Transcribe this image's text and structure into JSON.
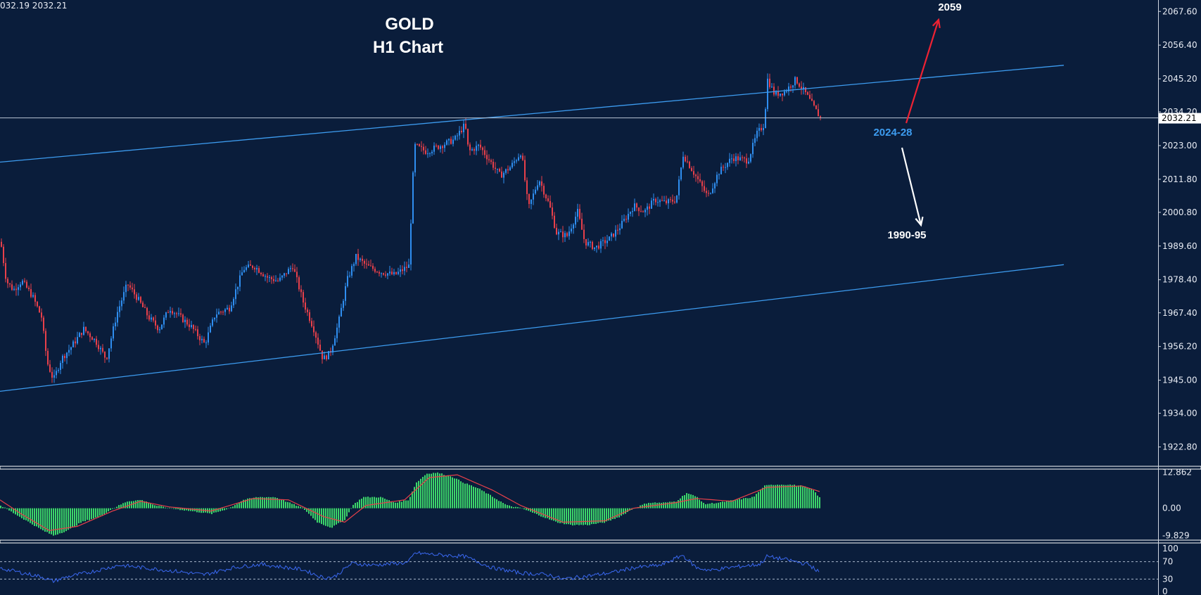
{
  "header": {
    "ohlc_readout": "032.19 2032.21"
  },
  "chart_data": [
    {
      "type": "candlestick",
      "title": "GOLD",
      "subtitle": "H1 Chart",
      "symbol": "GOLD",
      "timeframe": "H1",
      "ylim": [
        1916.6,
        2071.4
      ],
      "y_ticks": [
        "2067.60",
        "2056.40",
        "2045.20",
        "2034.20",
        "2023.00",
        "2011.80",
        "2000.80",
        "1989.60",
        "1978.40",
        "1967.40",
        "1956.20",
        "1945.00",
        "1934.00",
        "1922.80"
      ],
      "current_price": "2032.21",
      "close_path": [
        [
          0,
          1991
        ],
        [
          8,
          1978
        ],
        [
          18,
          1975
        ],
        [
          30,
          1978
        ],
        [
          45,
          1973
        ],
        [
          58,
          1966
        ],
        [
          66,
          1951
        ],
        [
          75,
          1945
        ],
        [
          86,
          1952
        ],
        [
          100,
          1956
        ],
        [
          118,
          1962
        ],
        [
          135,
          1958
        ],
        [
          150,
          1952
        ],
        [
          165,
          1967
        ],
        [
          180,
          1977
        ],
        [
          195,
          1972
        ],
        [
          210,
          1966
        ],
        [
          225,
          1962
        ],
        [
          240,
          1969
        ],
        [
          255,
          1966
        ],
        [
          270,
          1963
        ],
        [
          290,
          1957
        ],
        [
          305,
          1967
        ],
        [
          325,
          1969
        ],
        [
          345,
          1982
        ],
        [
          360,
          1983
        ],
        [
          380,
          1979
        ],
        [
          395,
          1978
        ],
        [
          415,
          1983
        ],
        [
          430,
          1971
        ],
        [
          445,
          1962
        ],
        [
          458,
          1952
        ],
        [
          468,
          1954
        ],
        [
          480,
          1964
        ],
        [
          492,
          1978
        ],
        [
          505,
          1986
        ],
        [
          520,
          1983
        ],
        [
          540,
          1981
        ],
        [
          560,
          1980
        ],
        [
          580,
          1983
        ],
        [
          588,
          2023
        ],
        [
          605,
          2021
        ],
        [
          625,
          2023
        ],
        [
          645,
          2025
        ],
        [
          660,
          2030
        ],
        [
          665,
          2021
        ],
        [
          680,
          2023
        ],
        [
          695,
          2018
        ],
        [
          710,
          2013
        ],
        [
          725,
          2016
        ],
        [
          740,
          2021
        ],
        [
          750,
          2002
        ],
        [
          765,
          2012
        ],
        [
          780,
          2003
        ],
        [
          790,
          1994
        ],
        [
          805,
          1993
        ],
        [
          820,
          2001
        ],
        [
          830,
          1991
        ],
        [
          845,
          1989
        ],
        [
          865,
          1992
        ],
        [
          880,
          1996
        ],
        [
          900,
          2003
        ],
        [
          915,
          2001
        ],
        [
          930,
          2005
        ],
        [
          945,
          2004
        ],
        [
          960,
          2005
        ],
        [
          970,
          2020
        ],
        [
          985,
          2014
        ],
        [
          1005,
          2006
        ],
        [
          1020,
          2014
        ],
        [
          1040,
          2019
        ],
        [
          1062,
          2018
        ],
        [
          1075,
          2027
        ],
        [
          1085,
          2030
        ],
        [
          1090,
          2045
        ],
        [
          1100,
          2040
        ],
        [
          1115,
          2041
        ],
        [
          1130,
          2045
        ],
        [
          1145,
          2040
        ],
        [
          1155,
          2036
        ],
        [
          1165,
          2032.2
        ]
      ],
      "trendlines": [
        {
          "name": "upper-channel",
          "from": [
            0,
            2017.5
          ],
          "to": [
            1512,
            2049.7
          ]
        },
        {
          "name": "lower-channel",
          "from": [
            0,
            1941.3
          ],
          "to": [
            1512,
            1983.4
          ]
        }
      ],
      "annotations": [
        {
          "text": "2059",
          "price": 2059,
          "color": "#ffffff",
          "arrow_color": "#ee2233",
          "direction": "up"
        },
        {
          "text": "2024-28",
          "price": 2026,
          "color": "#3d9cf0"
        },
        {
          "text": "1990-95",
          "price": 1992.5,
          "color": "#ffffff",
          "arrow_color": "#ffffff",
          "direction": "down"
        }
      ],
      "colors": {
        "background": "#0a1d3b",
        "bull": "#2f8ef0",
        "bear": "#e8404a",
        "channel": "#3d9cf0",
        "axis_text": "#e8ecf4"
      }
    },
    {
      "type": "histogram",
      "name": "macd",
      "ylim": [
        -11.2,
        13.8
      ],
      "y_ticks": [
        "12.862",
        "0.00",
        "-9.829"
      ],
      "histogram_path": [
        [
          0,
          1
        ],
        [
          20,
          -2
        ],
        [
          40,
          -5
        ],
        [
          60,
          -8
        ],
        [
          75,
          -9.8
        ],
        [
          95,
          -8
        ],
        [
          115,
          -5
        ],
        [
          140,
          -3
        ],
        [
          160,
          0
        ],
        [
          180,
          2.5
        ],
        [
          200,
          3
        ],
        [
          220,
          1
        ],
        [
          240,
          0
        ],
        [
          270,
          -1
        ],
        [
          300,
          -2
        ],
        [
          325,
          0
        ],
        [
          345,
          3
        ],
        [
          365,
          4
        ],
        [
          390,
          4
        ],
        [
          410,
          2
        ],
        [
          430,
          0
        ],
        [
          450,
          -5
        ],
        [
          470,
          -7
        ],
        [
          490,
          -4
        ],
        [
          500,
          1
        ],
        [
          515,
          4
        ],
        [
          540,
          4
        ],
        [
          560,
          2
        ],
        [
          580,
          3
        ],
        [
          590,
          9
        ],
        [
          605,
          12.4
        ],
        [
          620,
          12.8
        ],
        [
          640,
          11.5
        ],
        [
          660,
          9
        ],
        [
          680,
          7
        ],
        [
          700,
          4
        ],
        [
          720,
          1
        ],
        [
          740,
          0
        ],
        [
          760,
          -2
        ],
        [
          790,
          -5
        ],
        [
          810,
          -6
        ],
        [
          835,
          -6
        ],
        [
          860,
          -5
        ],
        [
          880,
          -3
        ],
        [
          900,
          0
        ],
        [
          920,
          2
        ],
        [
          945,
          2
        ],
        [
          960,
          2.5
        ],
        [
          975,
          5.5
        ],
        [
          990,
          4
        ],
        [
          1000,
          1.5
        ],
        [
          1020,
          2
        ],
        [
          1045,
          3
        ],
        [
          1070,
          4
        ],
        [
          1085,
          8
        ],
        [
          1100,
          8.5
        ],
        [
          1120,
          8.5
        ],
        [
          1140,
          8
        ],
        [
          1155,
          6.5
        ],
        [
          1165,
          3.5
        ]
      ],
      "signal_path": [
        [
          0,
          3
        ],
        [
          30,
          -2
        ],
        [
          70,
          -8
        ],
        [
          110,
          -6.5
        ],
        [
          160,
          -1
        ],
        [
          200,
          2.5
        ],
        [
          240,
          0.5
        ],
        [
          300,
          -1
        ],
        [
          360,
          3.5
        ],
        [
          410,
          3
        ],
        [
          460,
          -3
        ],
        [
          490,
          -5
        ],
        [
          520,
          1
        ],
        [
          575,
          3
        ],
        [
          610,
          11
        ],
        [
          650,
          12
        ],
        [
          700,
          6.5
        ],
        [
          740,
          1
        ],
        [
          800,
          -5
        ],
        [
          860,
          -4.5
        ],
        [
          900,
          0
        ],
        [
          960,
          2
        ],
        [
          990,
          3.5
        ],
        [
          1040,
          2.5
        ],
        [
          1090,
          7.5
        ],
        [
          1140,
          8
        ],
        [
          1165,
          6
        ]
      ],
      "colors": {
        "histogram": "#3cd66a",
        "signal": "#e8404a"
      }
    },
    {
      "type": "line",
      "name": "rsi",
      "ylim": [
        0,
        100
      ],
      "y_ticks": [
        "100",
        "70",
        "30",
        "0"
      ],
      "levels": [
        70,
        30
      ],
      "rsi_path": [
        [
          0,
          55
        ],
        [
          30,
          45
        ],
        [
          60,
          35
        ],
        [
          75,
          25
        ],
        [
          95,
          35
        ],
        [
          125,
          45
        ],
        [
          170,
          62
        ],
        [
          210,
          55
        ],
        [
          250,
          48
        ],
        [
          290,
          40
        ],
        [
          330,
          56
        ],
        [
          370,
          64
        ],
        [
          400,
          58
        ],
        [
          430,
          52
        ],
        [
          460,
          33
        ],
        [
          475,
          35
        ],
        [
          500,
          66
        ],
        [
          530,
          62
        ],
        [
          580,
          68
        ],
        [
          590,
          90
        ],
        [
          620,
          86
        ],
        [
          660,
          82
        ],
        [
          700,
          56
        ],
        [
          740,
          44
        ],
        [
          780,
          40
        ],
        [
          800,
          30
        ],
        [
          830,
          36
        ],
        [
          870,
          45
        ],
        [
          900,
          56
        ],
        [
          940,
          62
        ],
        [
          970,
          85
        ],
        [
          990,
          56
        ],
        [
          1010,
          50
        ],
        [
          1040,
          57
        ],
        [
          1080,
          64
        ],
        [
          1090,
          82
        ],
        [
          1120,
          74
        ],
        [
          1150,
          63
        ],
        [
          1165,
          45
        ]
      ],
      "colors": {
        "line": "#3a68f0",
        "levels": "#a9b8cc"
      }
    }
  ]
}
